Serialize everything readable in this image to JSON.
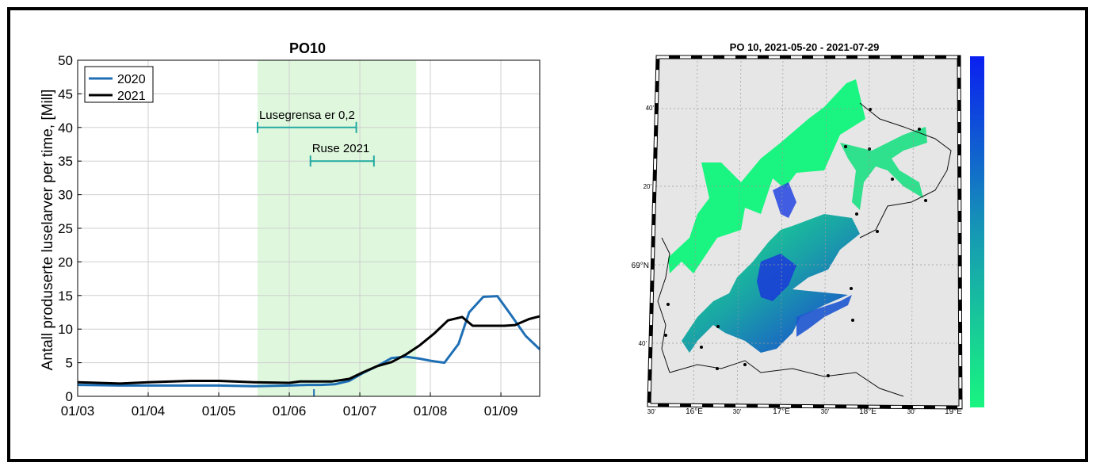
{
  "chart_data": [
    {
      "type": "line",
      "title": "PO10",
      "xlabel": "",
      "ylabel": "Antall produserte luselarver per time, [Mill]",
      "ylim": [
        0,
        50
      ],
      "yticks": [
        "0",
        "5",
        "10",
        "15",
        "20",
        "25",
        "30",
        "35",
        "40",
        "45",
        "50"
      ],
      "xlim": [
        0,
        6.55
      ],
      "xticks": [
        "01/03",
        "01/04",
        "01/05",
        "01/06",
        "01/07",
        "01/08",
        "01/09"
      ],
      "grid": true,
      "legend_position": "top-left",
      "series": [
        {
          "name": "2020",
          "color": "#1f6fb5",
          "x": [
            0,
            0.6,
            1,
            2,
            2.5,
            3,
            3.25,
            3.45,
            3.65,
            3.85,
            4.05,
            4.25,
            4.45,
            4.65,
            4.85,
            5.0,
            5.2,
            5.4,
            5.55,
            5.75,
            5.95,
            6.15,
            6.35,
            6.55
          ],
          "values": [
            1.7,
            1.6,
            1.6,
            1.6,
            1.5,
            1.6,
            1.7,
            1.7,
            1.8,
            2.3,
            3.5,
            4.5,
            5.7,
            5.9,
            5.6,
            5.3,
            5.0,
            7.8,
            12.5,
            14.8,
            14.9,
            12.0,
            9.0,
            7.0
          ]
        },
        {
          "name": "2021",
          "color": "#000000",
          "x": [
            0,
            0.6,
            1,
            1.6,
            2,
            2.5,
            3,
            3.15,
            3.35,
            3.6,
            3.85,
            4.05,
            4.25,
            4.45,
            4.65,
            4.85,
            5.05,
            5.25,
            5.45,
            5.6,
            5.8,
            6.05,
            6.2,
            6.4,
            6.55
          ],
          "values": [
            2.1,
            1.9,
            2.1,
            2.3,
            2.3,
            2.1,
            2.0,
            2.2,
            2.2,
            2.2,
            2.6,
            3.6,
            4.5,
            5.1,
            6.2,
            7.6,
            9.3,
            11.3,
            11.8,
            10.5,
            10.5,
            10.5,
            10.6,
            11.5,
            11.9
          ]
        }
      ],
      "shaded_region": {
        "x": [
          2.55,
          4.8
        ],
        "color": "#dff8dd"
      },
      "annotations": [
        {
          "label": "Lusegrensa er 0,2",
          "x_start": 2.55,
          "x_end": 3.95,
          "y": 40,
          "color": "#23a9a2"
        },
        {
          "label": "Ruse 2021",
          "x_start": 3.3,
          "x_end": 4.2,
          "y": 35,
          "color": "#23a9a2"
        }
      ],
      "marker": {
        "x": 3.35,
        "y": 0,
        "color": "#1f6fb5"
      }
    },
    {
      "type": "map",
      "title": "PO 10, 2021-05-20 - 2021-07-29",
      "lon_ticks": [
        "30'",
        "16°E",
        "30'",
        "17°E",
        "30'",
        "18°E",
        "30'",
        "19°E"
      ],
      "lat_ticks": [
        "40'",
        "20'",
        "69°N",
        "40'"
      ],
      "colorbar": {
        "top_color": "#0a1ff0",
        "bottom_color": "#19f580",
        "ticks": []
      },
      "colors": {
        "land": "#e6e6e6",
        "water_low": "#19f580",
        "water_mid": "#1aa0a8",
        "water_high": "#1b3ad8"
      }
    }
  ]
}
